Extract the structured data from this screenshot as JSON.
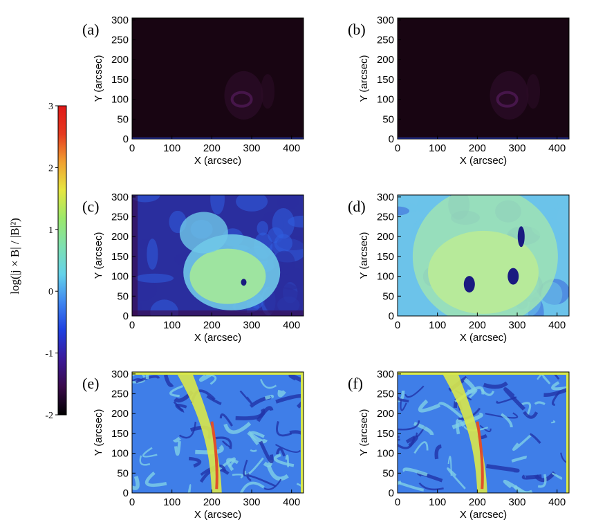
{
  "chart_data": {
    "type": "heatmap",
    "panels": [
      {
        "label": "(a)",
        "xlabel": "X (arcsec)",
        "ylabel": "Y (arcsec)",
        "xlim": [
          0,
          430
        ],
        "ylim": [
          0,
          305
        ],
        "xticks": [
          0,
          100,
          200,
          300,
          400
        ],
        "yticks": [
          0,
          50,
          100,
          150,
          200,
          250,
          300
        ],
        "pattern": "faint ring near center",
        "colors": [
          "#180512",
          "#2b0b27",
          "#46164a"
        ]
      },
      {
        "label": "(b)",
        "xlabel": "X (arcsec)",
        "ylabel": "Y (arcsec)",
        "xlim": [
          0,
          430
        ],
        "ylim": [
          0,
          305
        ],
        "xticks": [
          0,
          100,
          200,
          300,
          400
        ],
        "yticks": [
          0,
          50,
          100,
          150,
          200,
          250,
          300
        ],
        "pattern": "faint ring near center",
        "colors": [
          "#180512",
          "#2b0b27",
          "#46164a"
        ]
      },
      {
        "label": "(c)",
        "xlabel": "X (arcsec)",
        "ylabel": "Y (arcsec)",
        "xlim": [
          0,
          430
        ],
        "ylim": [
          0,
          305
        ],
        "xticks": [
          0,
          100,
          200,
          300,
          400
        ],
        "yticks": [
          0,
          50,
          100,
          150,
          200,
          250,
          300
        ],
        "pattern": "blue field with green central blob",
        "colors": [
          "#2a2e9e",
          "#2f5ee0",
          "#6fc8e8",
          "#9ee4a0"
        ]
      },
      {
        "label": "(d)",
        "xlabel": "X (arcsec)",
        "ylabel": "Y (arcsec)",
        "xlim": [
          0,
          430
        ],
        "ylim": [
          0,
          305
        ],
        "xticks": [
          0,
          100,
          200,
          300,
          400
        ],
        "yticks": [
          0,
          50,
          100,
          150,
          200,
          250,
          300
        ],
        "pattern": "light blue-green field with dark holes",
        "colors": [
          "#3b63d9",
          "#6cc3ea",
          "#9fe3b4",
          "#b7ea9a"
        ]
      },
      {
        "label": "(e)",
        "xlabel": "X (arcsec)",
        "ylabel": "Y (arcsec)",
        "xlim": [
          0,
          430
        ],
        "ylim": [
          0,
          305
        ],
        "xticks": [
          0,
          100,
          200,
          300,
          400
        ],
        "yticks": [
          0,
          50,
          100,
          150,
          200,
          250,
          300
        ],
        "pattern": "filamentary blue field with yellow-red vertical current sheet",
        "colors": [
          "#2233a8",
          "#3f7ee8",
          "#7fd0e6",
          "#d9e84a",
          "#e0502a"
        ]
      },
      {
        "label": "(f)",
        "xlabel": "X (arcsec)",
        "ylabel": "Y (arcsec)",
        "xlim": [
          0,
          430
        ],
        "ylim": [
          0,
          305
        ],
        "xticks": [
          0,
          100,
          200,
          300,
          400
        ],
        "yticks": [
          0,
          50,
          100,
          150,
          200,
          250,
          300
        ],
        "pattern": "filamentary blue field with yellow-red vertical current sheet",
        "colors": [
          "#2233a8",
          "#3f7ee8",
          "#7fd0e6",
          "#d9e84a",
          "#e0502a"
        ]
      }
    ],
    "colorbar": {
      "title": "log(|j × B| / |B|²)",
      "range": [
        -2,
        3
      ],
      "ticks": [
        "3",
        "2",
        "1",
        "0",
        "-1",
        "-2"
      ],
      "colormap": [
        "#000000",
        "#3a0a4a",
        "#3b1a9a",
        "#1f3fe0",
        "#3f86f0",
        "#64d2ea",
        "#7ee0b0",
        "#9be86a",
        "#e6e640",
        "#f0a030",
        "#e53a20",
        "#e01818"
      ]
    }
  }
}
